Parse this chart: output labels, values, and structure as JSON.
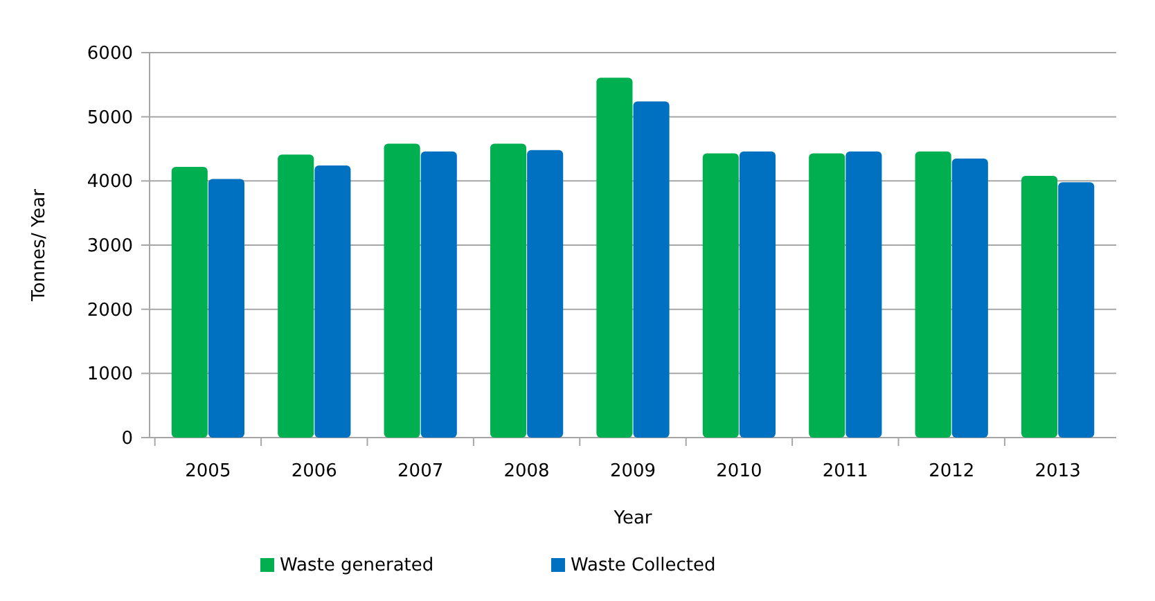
{
  "chart_data": {
    "type": "bar",
    "xlabel": "Year",
    "ylabel": "Tonnes/ Year",
    "categories": [
      "2005",
      "2006",
      "2007",
      "2008",
      "2009",
      "2010",
      "2011",
      "2012",
      "2013"
    ],
    "series": [
      {
        "name": "Waste generated",
        "color": "#00b050",
        "values": [
          4220,
          4410,
          4580,
          4580,
          5610,
          4430,
          4430,
          4460,
          4080
        ]
      },
      {
        "name": "Waste Collected",
        "color": "#0070c0",
        "values": [
          4030,
          4240,
          4460,
          4480,
          5240,
          4460,
          4460,
          4350,
          3980
        ]
      }
    ],
    "ylim": [
      0,
      6000
    ],
    "yticks": [
      0,
      1000,
      2000,
      3000,
      4000,
      5000,
      6000
    ],
    "grid": "y",
    "legend": "bottom"
  }
}
